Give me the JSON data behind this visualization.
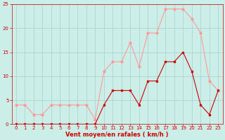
{
  "x": [
    0,
    1,
    2,
    3,
    4,
    5,
    6,
    7,
    8,
    9,
    10,
    11,
    12,
    13,
    14,
    15,
    16,
    17,
    18,
    19,
    20,
    21,
    22,
    23
  ],
  "avg_wind": [
    0,
    0,
    0,
    0,
    0,
    0,
    0,
    0,
    0,
    0,
    4,
    7,
    7,
    7,
    4,
    9,
    9,
    13,
    13,
    15,
    11,
    4,
    2,
    7
  ],
  "gust_wind": [
    4,
    4,
    2,
    2,
    4,
    4,
    4,
    4,
    4,
    1,
    11,
    13,
    13,
    17,
    12,
    19,
    19,
    24,
    24,
    24,
    22,
    19,
    9,
    7
  ],
  "xlabel": "Vent moyen/en rafales ( km/h )",
  "xlim_min": -0.5,
  "xlim_max": 23.5,
  "ylim_min": 0,
  "ylim_max": 25,
  "yticks": [
    0,
    5,
    10,
    15,
    20,
    25
  ],
  "xticks": [
    0,
    1,
    2,
    3,
    4,
    5,
    6,
    7,
    8,
    9,
    10,
    11,
    12,
    13,
    14,
    15,
    16,
    17,
    18,
    19,
    20,
    21,
    22,
    23
  ],
  "bg_color": "#cceee8",
  "grid_color": "#aacccc",
  "avg_color": "#cc0000",
  "gust_color": "#ff9999",
  "xlabel_color": "#cc0000",
  "tick_color": "#cc0000",
  "tick_fontsize": 5,
  "xlabel_fontsize": 6,
  "linewidth": 0.8,
  "markersize": 2.0
}
